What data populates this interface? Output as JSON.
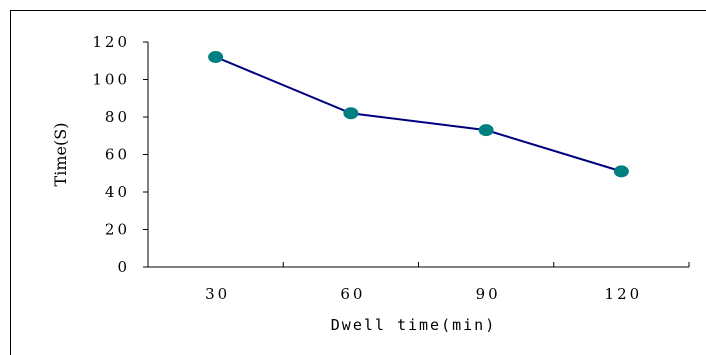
{
  "chart_data": {
    "type": "line",
    "categories": [
      "30",
      "60",
      "90",
      "120"
    ],
    "series": [
      {
        "name": "",
        "values": [
          112,
          82,
          73,
          51
        ],
        "color": "#000080",
        "marker_color": "#008080"
      }
    ],
    "xlabel": "Dwell time(min)",
    "ylabel": "Time(S)",
    "ylim": [
      0,
      120
    ],
    "yticks": [
      "0",
      "20",
      "40",
      "60",
      "80",
      "100",
      "120"
    ],
    "grid": false,
    "legend": "none"
  }
}
